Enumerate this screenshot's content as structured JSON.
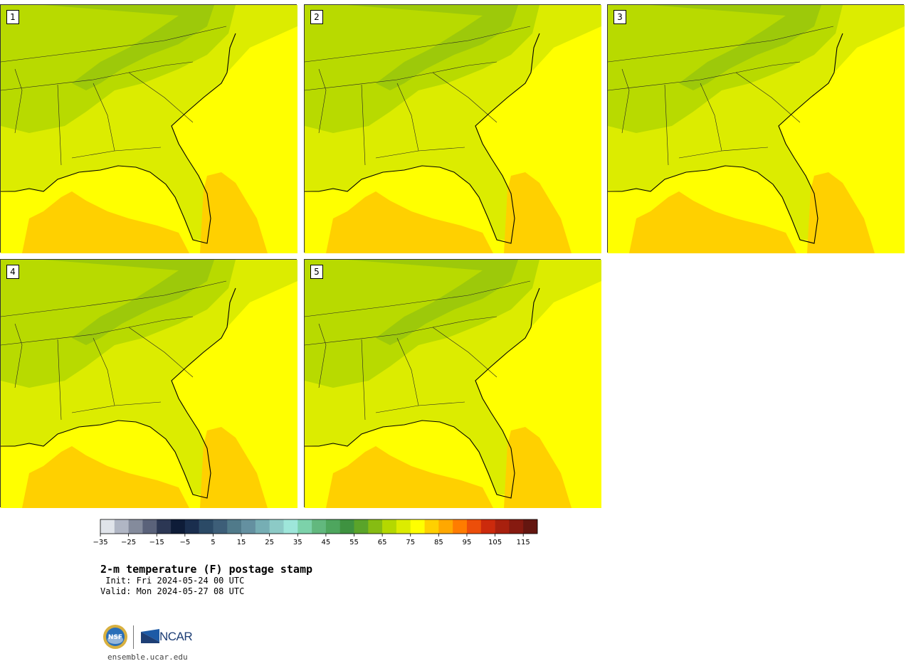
{
  "panels": [
    {
      "label": "1"
    },
    {
      "label": "2"
    },
    {
      "label": "3"
    },
    {
      "label": "4"
    },
    {
      "label": "5"
    }
  ],
  "colorbar": {
    "colors": [
      "#e0e4ea",
      "#b0b6c4",
      "#848b9c",
      "#5a627a",
      "#2c3754",
      "#0e1c38",
      "#1a2e4e",
      "#2b4a66",
      "#3d5e78",
      "#507a8a",
      "#6490a0",
      "#76aeb4",
      "#8ccac6",
      "#9ee6da",
      "#7cd2aa",
      "#62b87e",
      "#4ea65e",
      "#3e9240",
      "#5aa42a",
      "#86bc12",
      "#b4d800",
      "#dcec00",
      "#ffff00",
      "#ffd000",
      "#ffa800",
      "#ff7c00",
      "#ec4e0a",
      "#cc2a0c",
      "#a8200e",
      "#861a10",
      "#641610"
    ],
    "min": -35,
    "max": 120,
    "step": 5,
    "tick_labels": [
      "−35",
      "−25",
      "−15",
      "−5",
      "5",
      "15",
      "25",
      "35",
      "45",
      "55",
      "65",
      "75",
      "85",
      "95",
      "105",
      "115"
    ]
  },
  "title": "2-m temperature (F) postage stamp",
  "init_line": " Init: Fri 2024-05-24 00 UTC",
  "valid_line": "Valid: Mon 2024-05-27 08 UTC",
  "logos": {
    "nsf": "NSF",
    "ncar": "NCAR"
  },
  "footer_url": "ensemble.ucar.edu"
}
